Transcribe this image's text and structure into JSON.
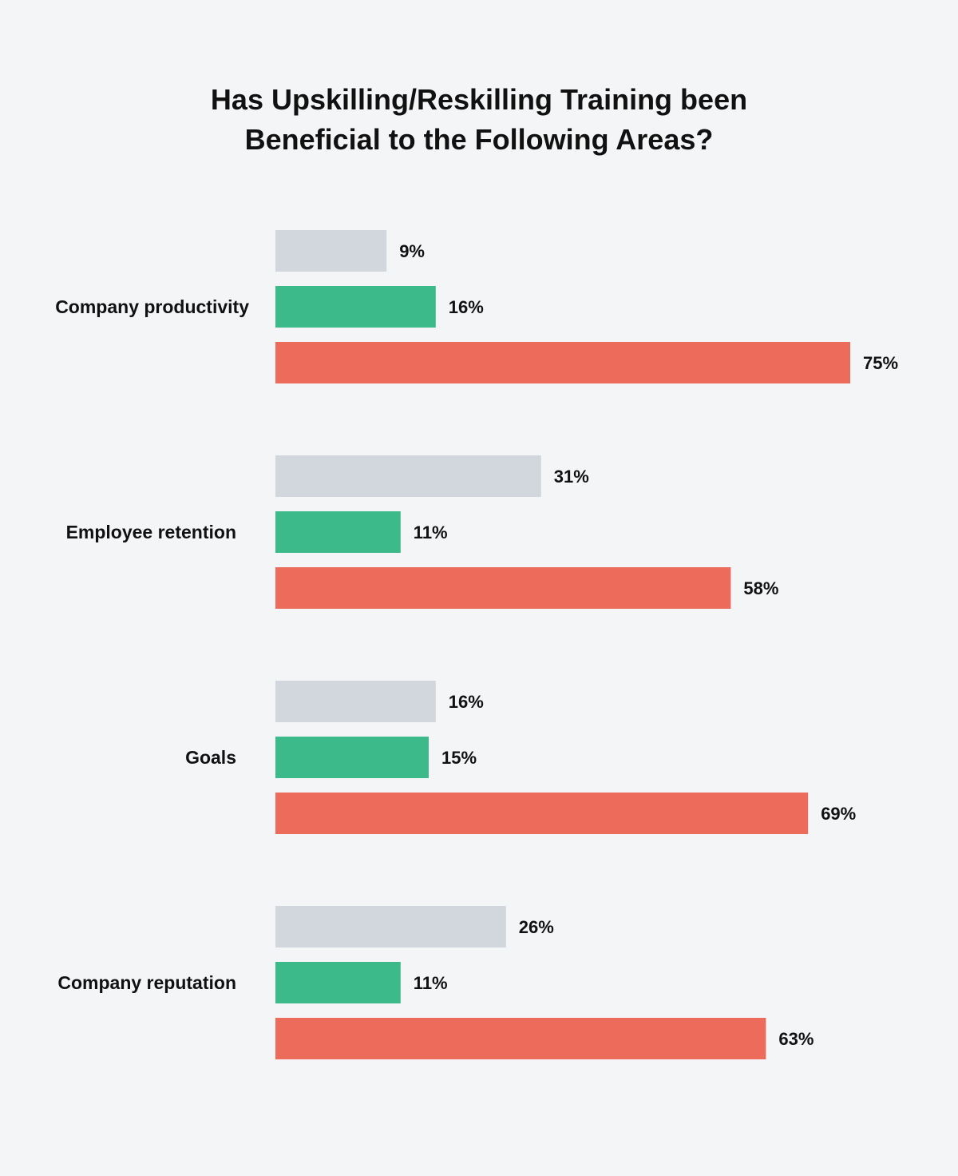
{
  "chart_data": {
    "type": "bar",
    "orientation": "horizontal",
    "title_lines": [
      "Has Upskilling/Reskilling Training been",
      "Beneficial to the Following Areas?"
    ],
    "categories": [
      "Company productivity",
      "Employee retention",
      "Goals",
      "Company reputation"
    ],
    "series": [
      {
        "values": [
          9,
          31,
          16,
          26
        ],
        "color": "#d1d7dd"
      },
      {
        "values": [
          16,
          11,
          15,
          11
        ],
        "color": "#3dba8a"
      },
      {
        "values": [
          75,
          58,
          69,
          63
        ],
        "color": "#ec6b5b"
      }
    ],
    "value_suffix": "%",
    "grid": false,
    "legend": "none",
    "background": "#f3f5f7"
  }
}
